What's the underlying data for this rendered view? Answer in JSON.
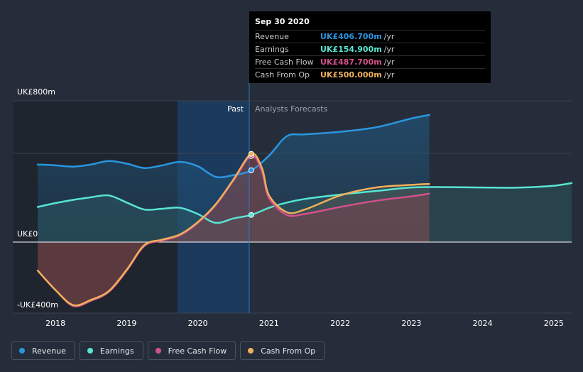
{
  "colors": {
    "revenue": "#2a96e0",
    "earnings": "#58e5d2",
    "free_cash_flow": "#d4508c",
    "cash_from_op": "#f0b05a",
    "background": "#262d3a"
  },
  "tooltip": {
    "date": "Sep 30 2020",
    "rows": [
      {
        "label": "Revenue",
        "value": "UK£406.700m",
        "unit": "/yr",
        "color": "#2a96e0"
      },
      {
        "label": "Earnings",
        "value": "UK£154.900m",
        "unit": "/yr",
        "color": "#58e5d2"
      },
      {
        "label": "Free Cash Flow",
        "value": "UK£487.700m",
        "unit": "/yr",
        "color": "#d4508c"
      },
      {
        "label": "Cash From Op",
        "value": "UK£500.000m",
        "unit": "/yr",
        "color": "#f0b05a"
      }
    ]
  },
  "chart_data": {
    "type": "line",
    "title": "",
    "xlabel": "",
    "ylabel": "",
    "ylim": [
      -400,
      800
    ],
    "xlim": [
      2017.4,
      2025.25
    ],
    "y_tick_labels": [
      "UK£800m",
      "UK£0",
      "-UK£400m"
    ],
    "x_tick_labels": [
      "2018",
      "2019",
      "2020",
      "2021",
      "2022",
      "2023",
      "2024",
      "2025"
    ],
    "divider_x": 2020.75,
    "past_label": "Past",
    "forecast_label": "Analysts Forecasts",
    "series": [
      {
        "name": "Revenue",
        "x": [
          2017.75,
          2018.0,
          2018.25,
          2018.5,
          2018.75,
          2019.0,
          2019.25,
          2019.5,
          2019.75,
          2020.0,
          2020.25,
          2020.5,
          2020.75,
          2021.0,
          2021.25,
          2021.5,
          2022.0,
          2022.5,
          2023.0,
          2023.25
        ],
        "values": [
          440,
          435,
          428,
          440,
          460,
          445,
          420,
          435,
          455,
          430,
          370,
          380,
          407,
          490,
          600,
          610,
          625,
          650,
          700,
          720
        ]
      },
      {
        "name": "Earnings",
        "x": [
          2017.75,
          2018.0,
          2018.25,
          2018.5,
          2018.75,
          2019.0,
          2019.25,
          2019.5,
          2019.75,
          2020.0,
          2020.25,
          2020.5,
          2020.75,
          2021.0,
          2021.25,
          2021.5,
          2022.0,
          2022.5,
          2023.0,
          2023.5,
          2024.0,
          2024.5,
          2025.0,
          2025.25
        ],
        "values": [
          200,
          222,
          240,
          255,
          265,
          225,
          185,
          190,
          195,
          160,
          110,
          135,
          155,
          195,
          225,
          245,
          270,
          290,
          310,
          312,
          310,
          309,
          320,
          335
        ]
      },
      {
        "name": "Free Cash Flow",
        "x": [
          2017.75,
          2018.0,
          2018.25,
          2018.5,
          2018.75,
          2019.0,
          2019.25,
          2019.5,
          2019.75,
          2020.0,
          2020.25,
          2020.5,
          2020.75,
          2020.9,
          2021.0,
          2021.25,
          2021.5,
          2022.0,
          2022.5,
          2023.0,
          2023.25
        ],
        "values": [
          -160,
          -270,
          -360,
          -330,
          -280,
          -160,
          -20,
          10,
          40,
          110,
          210,
          350,
          488,
          400,
          250,
          155,
          160,
          200,
          235,
          260,
          275
        ]
      },
      {
        "name": "Cash From Op",
        "x": [
          2017.75,
          2018.0,
          2018.25,
          2018.5,
          2018.75,
          2019.0,
          2019.25,
          2019.5,
          2019.75,
          2020.0,
          2020.25,
          2020.5,
          2020.75,
          2020.9,
          2021.0,
          2021.25,
          2021.5,
          2022.0,
          2022.5,
          2023.0,
          2023.25
        ],
        "values": [
          -160,
          -270,
          -355,
          -325,
          -275,
          -155,
          -15,
          15,
          45,
          115,
          215,
          355,
          500,
          420,
          265,
          170,
          185,
          265,
          310,
          325,
          330
        ]
      }
    ]
  },
  "legend": [
    {
      "label": "Revenue",
      "color": "#2a96e0"
    },
    {
      "label": "Earnings",
      "color": "#58e5d2"
    },
    {
      "label": "Free Cash Flow",
      "color": "#d4508c"
    },
    {
      "label": "Cash From Op",
      "color": "#f0b05a"
    }
  ]
}
